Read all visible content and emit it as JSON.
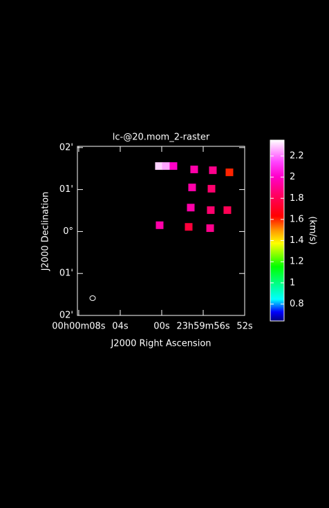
{
  "chart_data": {
    "type": "raster",
    "title": "lc-@20.mom_2-raster",
    "x_label": "J2000 Right Ascension",
    "y_label": "J2000 Declination",
    "colorbar_label": "(km/s)",
    "xlim": [
      8.13,
      -8
    ],
    "ylim": [
      -2,
      2.03
    ],
    "xticks": [
      {
        "value": 8,
        "label": "00h00m08s"
      },
      {
        "value": 4,
        "label": "04s"
      },
      {
        "value": 0,
        "label": "00s"
      },
      {
        "value": -4,
        "label": "23h59m56s"
      },
      {
        "value": -8,
        "label": "52s"
      }
    ],
    "yticks": [
      {
        "value": 2,
        "label": "02'"
      },
      {
        "value": 1,
        "label": "01'"
      },
      {
        "value": 0,
        "label": "0°"
      },
      {
        "value": -1,
        "label": "01'"
      },
      {
        "value": -2,
        "label": "02'"
      }
    ],
    "clim": [
      0.64,
      2.35
    ],
    "cticks": [
      0.8,
      1,
      1.2,
      1.4,
      1.6,
      1.8,
      2,
      2.2
    ],
    "x": [
      0.27,
      -0.4,
      -1.13,
      -3.13,
      -4.93,
      -6.53,
      -2.93,
      -4.8,
      -2.8,
      -4.73,
      -6.33,
      0.2,
      -2.6,
      -4.67
    ],
    "y": [
      1.56,
      1.56,
      1.56,
      1.48,
      1.46,
      1.41,
      1.05,
      1.02,
      0.57,
      0.51,
      0.51,
      0.15,
      0.11,
      0.08
    ],
    "values": [
      2.3,
      2.25,
      2.0,
      1.95,
      1.9,
      1.6,
      1.95,
      1.85,
      1.95,
      1.85,
      1.8,
      1.95,
      1.75,
      1.9
    ]
  }
}
